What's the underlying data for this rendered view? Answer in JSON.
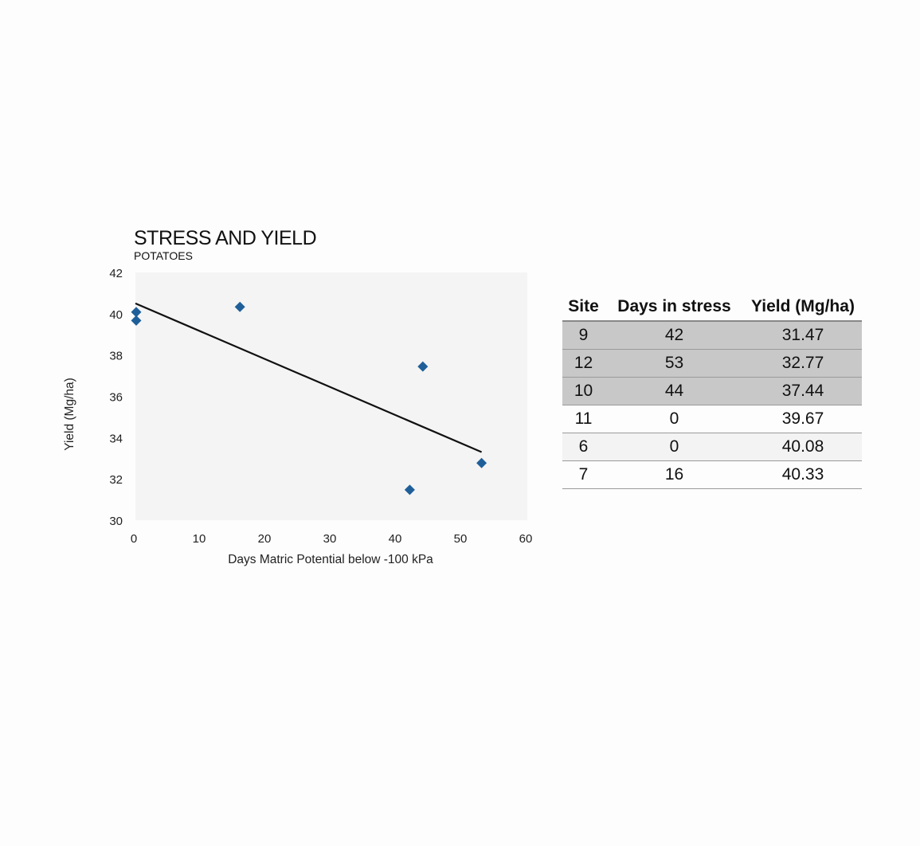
{
  "chart": {
    "title": "STRESS AND YIELD",
    "subtitle": "POTATOES"
  },
  "chart_data": {
    "type": "scatter",
    "title": "STRESS AND YIELD",
    "subtitle": "POTATOES",
    "xlabel": "Days Matric Potential below -100 kPa",
    "ylabel": "Yield (Mg/ha)",
    "xlim": [
      0,
      60
    ],
    "ylim": [
      30,
      42
    ],
    "x_ticks": [
      0,
      10,
      20,
      30,
      40,
      50,
      60
    ],
    "y_ticks": [
      30,
      32,
      34,
      36,
      38,
      40,
      42
    ],
    "grid": false,
    "series": [
      {
        "points": [
          {
            "x": 42,
            "y": 31.47
          },
          {
            "x": 53,
            "y": 32.77
          },
          {
            "x": 44,
            "y": 37.44
          },
          {
            "x": 0,
            "y": 39.67
          },
          {
            "x": 0,
            "y": 40.08
          },
          {
            "x": 16,
            "y": 40.33
          }
        ],
        "marker": "diamond",
        "color": "#1f5f99"
      }
    ],
    "trendline": {
      "type": "linear",
      "from": {
        "x": 0,
        "y": 40.5
      },
      "to": {
        "x": 53,
        "y": 33.3
      },
      "color": "#111111"
    },
    "plot_background": "#f4f4f4"
  },
  "table": {
    "headers": [
      "Site",
      "Days in stress",
      "Yield (Mg/ha)"
    ],
    "rows": [
      {
        "site": "9",
        "days": "42",
        "yield": "31.47",
        "highlight": true
      },
      {
        "site": "12",
        "days": "53",
        "yield": "32.77",
        "highlight": true
      },
      {
        "site": "10",
        "days": "44",
        "yield": "37.44",
        "highlight": true
      },
      {
        "site": "11",
        "days": "0",
        "yield": "39.67",
        "highlight": false
      },
      {
        "site": "6",
        "days": "0",
        "yield": "40.08",
        "highlight": false
      },
      {
        "site": "7",
        "days": "16",
        "yield": "40.33",
        "highlight": false
      }
    ],
    "highlight_color": "#c8c8c8"
  }
}
